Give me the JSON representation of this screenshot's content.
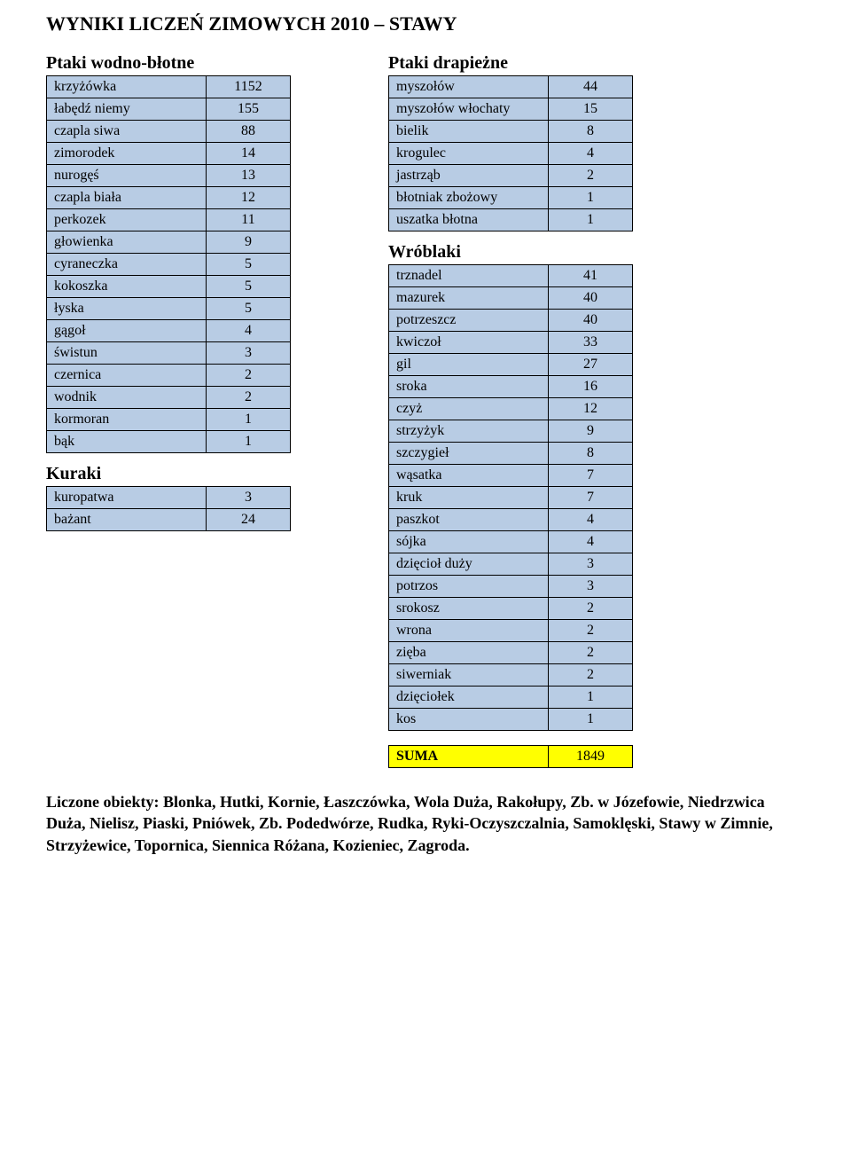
{
  "title": "WYNIKI LICZEŃ ZIMOWYCH 2010 – STAWY",
  "sections": {
    "wodne": {
      "title": "Ptaki wodno-błotne",
      "rows": [
        {
          "label": "krzyżówka",
          "value": "1152"
        },
        {
          "label": "łabędź niemy",
          "value": "155"
        },
        {
          "label": "czapla siwa",
          "value": "88"
        },
        {
          "label": "zimorodek",
          "value": "14"
        },
        {
          "label": "nurogęś",
          "value": "13"
        },
        {
          "label": "czapla biała",
          "value": "12"
        },
        {
          "label": "perkozek",
          "value": "11"
        },
        {
          "label": "głowienka",
          "value": "9"
        },
        {
          "label": "cyraneczka",
          "value": "5"
        },
        {
          "label": "kokoszka",
          "value": "5"
        },
        {
          "label": "łyska",
          "value": "5"
        },
        {
          "label": "gągoł",
          "value": "4"
        },
        {
          "label": "świstun",
          "value": "3"
        },
        {
          "label": "czernica",
          "value": "2"
        },
        {
          "label": "wodnik",
          "value": "2"
        },
        {
          "label": "kormoran",
          "value": "1"
        },
        {
          "label": "bąk",
          "value": "1"
        }
      ]
    },
    "kuraki": {
      "title": "Kuraki",
      "rows": [
        {
          "label": "kuropatwa",
          "value": "3"
        },
        {
          "label": "bażant",
          "value": "24"
        }
      ]
    },
    "drapiezne": {
      "title": "Ptaki drapieżne",
      "rows": [
        {
          "label": "myszołów",
          "value": "44"
        },
        {
          "label": "myszołów włochaty",
          "value": "15"
        },
        {
          "label": "bielik",
          "value": "8"
        },
        {
          "label": "krogulec",
          "value": "4"
        },
        {
          "label": "jastrząb",
          "value": "2"
        },
        {
          "label": "błotniak zbożowy",
          "value": "1"
        },
        {
          "label": "uszatka błotna",
          "value": "1"
        }
      ]
    },
    "wroblaki": {
      "title": "Wróblaki",
      "rows": [
        {
          "label": "trznadel",
          "value": "41"
        },
        {
          "label": "mazurek",
          "value": "40"
        },
        {
          "label": "potrzeszcz",
          "value": "40"
        },
        {
          "label": "kwiczoł",
          "value": "33"
        },
        {
          "label": "gil",
          "value": "27"
        },
        {
          "label": "sroka",
          "value": "16"
        },
        {
          "label": "czyż",
          "value": "12"
        },
        {
          "label": "strzyżyk",
          "value": "9"
        },
        {
          "label": "szczygieł",
          "value": "8"
        },
        {
          "label": "wąsatka",
          "value": "7"
        },
        {
          "label": "kruk",
          "value": "7"
        },
        {
          "label": "paszkot",
          "value": "4"
        },
        {
          "label": "sójka",
          "value": "4"
        },
        {
          "label": "dzięcioł duży",
          "value": "3"
        },
        {
          "label": "potrzos",
          "value": "3"
        },
        {
          "label": "srokosz",
          "value": "2"
        },
        {
          "label": "wrona",
          "value": "2"
        },
        {
          "label": "zięba",
          "value": "2"
        },
        {
          "label": "siwerniak",
          "value": "2"
        },
        {
          "label": "dzięciołek",
          "value": "1"
        },
        {
          "label": "kos",
          "value": "1"
        }
      ]
    }
  },
  "sum": {
    "label": "SUMA",
    "value": "1849"
  },
  "footer": "Liczone obiekty: Blonka, Hutki, Kornie, Łaszczówka, Wola Duża, Rakołupy, Zb. w Józefowie, Niedrzwica Duża, Nielisz, Piaski, Pniówek, Zb. Podedwórze, Rudka, Ryki-Oczyszczalnia, Samoklęski, Stawy w Zimnie, Strzyżewice, Topornica, Siennica Różana, Kozieniec, Zagroda.",
  "colors": {
    "row_bg": "#b8cce4",
    "sum_bg": "#ffff00",
    "border": "#000000",
    "text": "#000000"
  }
}
